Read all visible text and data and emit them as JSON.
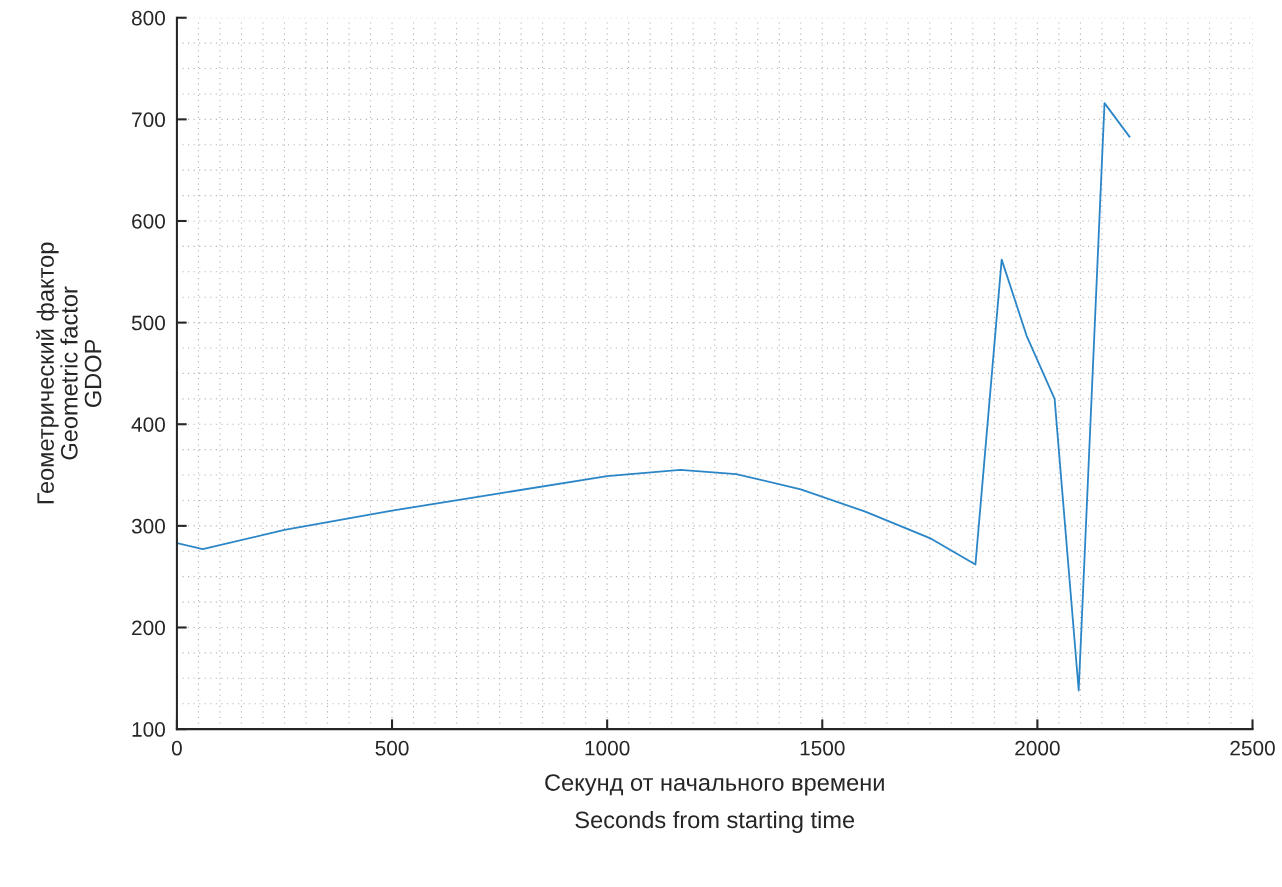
{
  "chart_data": {
    "type": "line",
    "xlabel": "Секунд от начального времени\nSeconds from starting time",
    "ylabel": "Геометрический фактор\nGeometric factor\nGDOP",
    "series": [
      {
        "color": "#2b86c8",
        "x": [
          0,
          60,
          250,
          500,
          750,
          1000,
          1170,
          1300,
          1450,
          1600,
          1750,
          1856,
          1917,
          1975,
          2040,
          2096,
          2156,
          2214
        ],
        "values": [
          283,
          277,
          296,
          315,
          332,
          349,
          355,
          351,
          336,
          314,
          288,
          262,
          562,
          487,
          425,
          138,
          716,
          683
        ]
      }
    ],
    "xlim": [
      0,
      2500
    ],
    "xticks": [
      0,
      500,
      1000,
      1500,
      2000,
      2500
    ],
    "ylim": [
      100,
      800
    ],
    "yticks": [
      100,
      200,
      300,
      400,
      500,
      600,
      700,
      800
    ],
    "grid": true,
    "marker": "none",
    "line_style": "solid",
    "legend": false
  }
}
